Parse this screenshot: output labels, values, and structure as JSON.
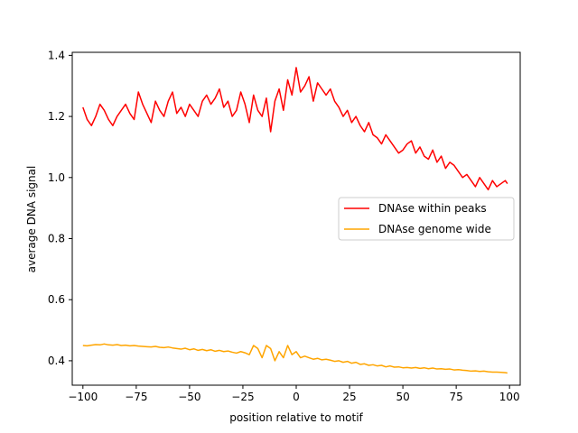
{
  "chart_data": {
    "type": "line",
    "title": "",
    "xlabel": "position relative to motif",
    "ylabel": "average DNA signal",
    "xlim": [
      -105,
      105
    ],
    "ylim": [
      0.32,
      1.41
    ],
    "xticks": [
      -100,
      -75,
      -50,
      -25,
      0,
      25,
      50,
      75,
      100
    ],
    "xtick_labels": [
      "−100",
      "−75",
      "−50",
      "−25",
      "0",
      "25",
      "50",
      "75",
      "100"
    ],
    "yticks": [
      0.4,
      0.6,
      0.8,
      1.0,
      1.2,
      1.4
    ],
    "ytick_labels": [
      "0.4",
      "0.6",
      "0.8",
      "1.0",
      "1.2",
      "1.4"
    ],
    "grid": false,
    "legend": {
      "location": "center-right"
    },
    "series": [
      {
        "name": "DNAse within peaks",
        "color": "#ff0000",
        "x": [
          -100,
          -98,
          -96,
          -94,
          -92,
          -90,
          -88,
          -86,
          -84,
          -82,
          -80,
          -78,
          -76,
          -74,
          -72,
          -70,
          -68,
          -66,
          -64,
          -62,
          -60,
          -58,
          -56,
          -54,
          -52,
          -50,
          -48,
          -46,
          -44,
          -42,
          -40,
          -38,
          -36,
          -34,
          -32,
          -30,
          -28,
          -26,
          -24,
          -22,
          -20,
          -18,
          -16,
          -14,
          -12,
          -10,
          -8,
          -6,
          -4,
          -2,
          0,
          2,
          4,
          6,
          8,
          10,
          12,
          14,
          16,
          18,
          20,
          22,
          24,
          26,
          28,
          30,
          32,
          34,
          36,
          38,
          40,
          42,
          44,
          46,
          48,
          50,
          52,
          54,
          56,
          58,
          60,
          62,
          64,
          66,
          68,
          70,
          72,
          74,
          76,
          78,
          80,
          82,
          84,
          86,
          88,
          90,
          92,
          94,
          96,
          98,
          99
        ],
        "values": [
          1.23,
          1.19,
          1.17,
          1.2,
          1.24,
          1.22,
          1.19,
          1.17,
          1.2,
          1.22,
          1.24,
          1.21,
          1.19,
          1.28,
          1.24,
          1.21,
          1.18,
          1.25,
          1.22,
          1.2,
          1.25,
          1.28,
          1.21,
          1.23,
          1.2,
          1.24,
          1.22,
          1.2,
          1.25,
          1.27,
          1.24,
          1.26,
          1.29,
          1.23,
          1.25,
          1.2,
          1.22,
          1.28,
          1.24,
          1.18,
          1.27,
          1.22,
          1.2,
          1.26,
          1.15,
          1.25,
          1.29,
          1.22,
          1.32,
          1.27,
          1.36,
          1.28,
          1.3,
          1.33,
          1.25,
          1.31,
          1.29,
          1.27,
          1.29,
          1.25,
          1.23,
          1.2,
          1.22,
          1.18,
          1.2,
          1.17,
          1.15,
          1.18,
          1.14,
          1.13,
          1.11,
          1.14,
          1.12,
          1.1,
          1.08,
          1.09,
          1.11,
          1.12,
          1.08,
          1.1,
          1.07,
          1.06,
          1.09,
          1.05,
          1.07,
          1.03,
          1.05,
          1.04,
          1.02,
          1.0,
          1.01,
          0.99,
          0.97,
          1.0,
          0.98,
          0.96,
          0.99,
          0.97,
          0.98,
          0.99,
          0.98
        ]
      },
      {
        "name": "DNAse genome wide",
        "color": "#ffa500",
        "x": [
          -100,
          -98,
          -96,
          -94,
          -92,
          -90,
          -88,
          -86,
          -84,
          -82,
          -80,
          -78,
          -76,
          -74,
          -72,
          -70,
          -68,
          -66,
          -64,
          -62,
          -60,
          -58,
          -56,
          -54,
          -52,
          -50,
          -48,
          -46,
          -44,
          -42,
          -40,
          -38,
          -36,
          -34,
          -32,
          -30,
          -28,
          -26,
          -24,
          -22,
          -20,
          -18,
          -16,
          -14,
          -12,
          -10,
          -8,
          -6,
          -4,
          -2,
          0,
          2,
          4,
          6,
          8,
          10,
          12,
          14,
          16,
          18,
          20,
          22,
          24,
          26,
          28,
          30,
          32,
          34,
          36,
          38,
          40,
          42,
          44,
          46,
          48,
          50,
          52,
          54,
          56,
          58,
          60,
          62,
          64,
          66,
          68,
          70,
          72,
          74,
          76,
          78,
          80,
          82,
          84,
          86,
          88,
          90,
          92,
          94,
          96,
          98,
          99
        ],
        "values": [
          0.45,
          0.449,
          0.451,
          0.453,
          0.452,
          0.455,
          0.452,
          0.451,
          0.453,
          0.45,
          0.451,
          0.449,
          0.45,
          0.448,
          0.447,
          0.446,
          0.445,
          0.447,
          0.444,
          0.443,
          0.445,
          0.442,
          0.44,
          0.438,
          0.441,
          0.436,
          0.439,
          0.434,
          0.437,
          0.433,
          0.436,
          0.431,
          0.434,
          0.43,
          0.432,
          0.428,
          0.425,
          0.43,
          0.426,
          0.42,
          0.45,
          0.44,
          0.41,
          0.45,
          0.44,
          0.4,
          0.43,
          0.41,
          0.45,
          0.42,
          0.43,
          0.41,
          0.415,
          0.41,
          0.405,
          0.408,
          0.403,
          0.405,
          0.402,
          0.398,
          0.4,
          0.395,
          0.398,
          0.392,
          0.395,
          0.388,
          0.39,
          0.385,
          0.387,
          0.383,
          0.385,
          0.38,
          0.383,
          0.379,
          0.38,
          0.377,
          0.378,
          0.376,
          0.378,
          0.375,
          0.377,
          0.374,
          0.376,
          0.373,
          0.374,
          0.372,
          0.373,
          0.37,
          0.371,
          0.369,
          0.368,
          0.366,
          0.367,
          0.365,
          0.366,
          0.364,
          0.363,
          0.363,
          0.362,
          0.361,
          0.36
        ]
      }
    ]
  }
}
